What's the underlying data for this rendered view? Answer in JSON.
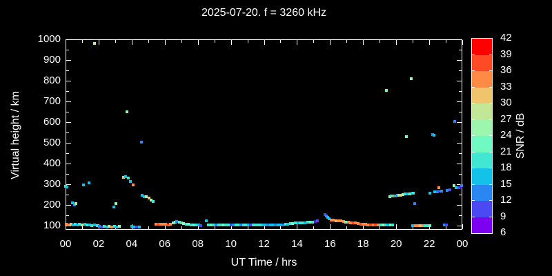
{
  "title": "2025-07-20. f = 3260 kHz",
  "chart_data": {
    "type": "scatter",
    "title": "2025-07-20. f = 3260 kHz",
    "xlabel": "UT Time / hrs",
    "ylabel": "Virtual height / km",
    "xlim": [
      0,
      24
    ],
    "ylim": [
      80,
      1000
    ],
    "grid": false,
    "x_tick_labels": [
      "00",
      "02",
      "04",
      "06",
      "08",
      "10",
      "12",
      "14",
      "16",
      "18",
      "20",
      "22",
      "00"
    ],
    "x_tick_hours": [
      0,
      2,
      4,
      6,
      8,
      10,
      12,
      14,
      16,
      18,
      20,
      22,
      24
    ],
    "y_tick_labels": [
      100,
      200,
      300,
      400,
      500,
      600,
      700,
      800,
      900,
      1000
    ],
    "colorbar": {
      "label": "SNR / dB",
      "min": 6,
      "max": 42,
      "step": 3,
      "tick_labels": [
        6,
        9,
        12,
        15,
        18,
        21,
        24,
        27,
        30,
        33,
        36,
        39,
        42
      ],
      "colors": [
        "#7d00f0",
        "#4b4af2",
        "#2a86f0",
        "#13c2e9",
        "#41e7d3",
        "#70f9c3",
        "#9cf6ae",
        "#c2e796",
        "#f0c46c",
        "#fe8b45",
        "#ff4a26",
        "#fe0000"
      ]
    },
    "series_note": "points are [UT_hour, virtual_height_km, snr_bucket_index] where bucket 0 = 6-9 dB ... 11 = 39-42 dB",
    "points": [
      [
        0.02,
        290,
        4
      ],
      [
        0.1,
        288,
        3
      ],
      [
        0.42,
        210,
        3
      ],
      [
        0.55,
        200,
        2
      ],
      [
        0.62,
        207,
        6
      ],
      [
        1.08,
        297,
        3
      ],
      [
        1.42,
        307,
        3
      ],
      [
        1.77,
        980,
        7
      ],
      [
        2.92,
        190,
        3
      ],
      [
        3.05,
        207,
        6
      ],
      [
        3.5,
        333,
        8
      ],
      [
        3.62,
        337,
        3
      ],
      [
        3.8,
        330,
        4
      ],
      [
        3.92,
        313,
        3
      ],
      [
        4.07,
        297,
        9
      ],
      [
        3.7,
        650,
        6
      ],
      [
        4.6,
        502,
        2
      ],
      [
        4.62,
        247,
        3
      ],
      [
        4.75,
        240,
        3
      ],
      [
        4.9,
        240,
        6
      ],
      [
        5.05,
        233,
        8
      ],
      [
        5.17,
        223,
        6
      ],
      [
        5.3,
        217,
        4
      ],
      [
        0.05,
        107,
        9
      ],
      [
        0.18,
        105,
        9
      ],
      [
        0.32,
        107,
        8
      ],
      [
        0.45,
        105,
        3
      ],
      [
        0.58,
        107,
        4
      ],
      [
        0.72,
        105,
        3
      ],
      [
        0.85,
        107,
        4
      ],
      [
        1.0,
        105,
        7
      ],
      [
        1.15,
        107,
        3
      ],
      [
        1.3,
        103,
        4
      ],
      [
        1.45,
        105,
        3
      ],
      [
        1.6,
        101,
        4
      ],
      [
        1.75,
        103,
        3
      ],
      [
        1.9,
        100,
        4
      ],
      [
        2.05,
        98,
        2
      ],
      [
        2.2,
        95,
        1
      ],
      [
        2.35,
        97,
        4
      ],
      [
        2.5,
        95,
        3
      ],
      [
        2.65,
        97,
        6
      ],
      [
        2.8,
        95,
        9
      ],
      [
        2.95,
        97,
        4
      ],
      [
        3.1,
        95,
        3
      ],
      [
        3.25,
        97,
        6
      ],
      [
        4.0,
        97,
        3
      ],
      [
        4.15,
        95,
        3
      ],
      [
        4.3,
        93,
        1
      ],
      [
        4.45,
        95,
        3
      ],
      [
        5.45,
        107,
        9
      ],
      [
        5.6,
        108,
        10
      ],
      [
        5.75,
        107,
        9
      ],
      [
        5.9,
        106,
        9
      ],
      [
        6.05,
        107,
        9
      ],
      [
        6.2,
        105,
        10
      ],
      [
        6.35,
        107,
        9
      ],
      [
        6.5,
        113,
        5
      ],
      [
        6.62,
        118,
        6
      ],
      [
        6.74,
        121,
        2
      ],
      [
        6.87,
        117,
        5
      ],
      [
        7.0,
        113,
        4
      ],
      [
        7.15,
        110,
        6
      ],
      [
        7.3,
        108,
        4
      ],
      [
        7.45,
        107,
        5
      ],
      [
        7.6,
        105,
        4
      ],
      [
        7.75,
        103,
        5
      ],
      [
        7.9,
        103,
        4
      ],
      [
        8.05,
        102,
        3
      ],
      [
        8.2,
        100,
        1
      ],
      [
        8.5,
        125,
        3
      ],
      [
        8.65,
        103,
        4
      ],
      [
        8.8,
        102,
        5
      ],
      [
        8.95,
        103,
        4
      ],
      [
        9.1,
        102,
        2
      ],
      [
        9.25,
        103,
        4
      ],
      [
        9.4,
        102,
        4
      ],
      [
        9.55,
        103,
        5
      ],
      [
        9.7,
        102,
        4
      ],
      [
        9.85,
        103,
        4
      ],
      [
        10.0,
        102,
        1
      ],
      [
        10.15,
        103,
        2
      ],
      [
        10.3,
        102,
        4
      ],
      [
        10.45,
        103,
        4
      ],
      [
        10.6,
        102,
        2
      ],
      [
        10.75,
        103,
        4
      ],
      [
        10.9,
        102,
        4
      ],
      [
        11.05,
        103,
        3
      ],
      [
        11.2,
        102,
        1
      ],
      [
        11.35,
        103,
        4
      ],
      [
        11.5,
        102,
        4
      ],
      [
        11.65,
        103,
        4
      ],
      [
        11.8,
        102,
        4
      ],
      [
        11.95,
        103,
        3
      ],
      [
        12.1,
        102,
        3
      ],
      [
        12.25,
        103,
        2
      ],
      [
        12.4,
        102,
        3
      ],
      [
        12.55,
        103,
        3
      ],
      [
        12.7,
        102,
        2
      ],
      [
        12.85,
        103,
        3
      ],
      [
        13.0,
        102,
        3
      ],
      [
        13.15,
        103,
        2
      ],
      [
        13.3,
        107,
        4
      ],
      [
        13.45,
        108,
        3
      ],
      [
        13.6,
        110,
        4
      ],
      [
        13.75,
        110,
        5
      ],
      [
        13.9,
        112,
        4
      ],
      [
        14.05,
        113,
        3
      ],
      [
        14.2,
        113,
        4
      ],
      [
        14.35,
        115,
        4
      ],
      [
        14.5,
        115,
        3
      ],
      [
        14.65,
        117,
        4
      ],
      [
        14.8,
        117,
        5
      ],
      [
        14.95,
        118,
        4
      ],
      [
        15.1,
        120,
        0
      ],
      [
        15.22,
        122,
        1
      ],
      [
        15.7,
        155,
        1
      ],
      [
        15.78,
        147,
        2
      ],
      [
        15.87,
        140,
        3
      ],
      [
        15.95,
        133,
        3
      ],
      [
        16.05,
        128,
        9
      ],
      [
        16.2,
        127,
        9
      ],
      [
        16.35,
        125,
        8
      ],
      [
        16.5,
        123,
        9
      ],
      [
        16.65,
        122,
        9
      ],
      [
        16.8,
        120,
        9
      ],
      [
        16.95,
        118,
        5
      ],
      [
        17.1,
        117,
        9
      ],
      [
        17.25,
        115,
        9
      ],
      [
        17.4,
        113,
        10
      ],
      [
        17.55,
        112,
        9
      ],
      [
        17.7,
        110,
        9
      ],
      [
        17.85,
        108,
        10
      ],
      [
        18.0,
        107,
        9
      ],
      [
        18.15,
        107,
        9
      ],
      [
        18.3,
        105,
        9
      ],
      [
        18.45,
        104,
        10
      ],
      [
        18.6,
        103,
        9
      ],
      [
        18.75,
        103,
        10
      ],
      [
        18.9,
        102,
        9
      ],
      [
        19.05,
        102,
        4
      ],
      [
        19.2,
        102,
        6
      ],
      [
        19.35,
        102,
        4
      ],
      [
        19.5,
        102,
        3
      ],
      [
        19.65,
        102,
        5
      ],
      [
        19.8,
        102,
        4
      ],
      [
        21.0,
        100,
        3
      ],
      [
        21.15,
        99,
        9
      ],
      [
        21.3,
        99,
        9
      ],
      [
        21.45,
        99,
        8
      ],
      [
        21.6,
        99,
        9
      ],
      [
        21.75,
        100,
        4
      ],
      [
        21.9,
        100,
        4
      ],
      [
        22.05,
        100,
        5
      ],
      [
        22.9,
        102,
        2
      ],
      [
        23.05,
        102,
        1
      ],
      [
        19.6,
        240,
        6
      ],
      [
        19.72,
        242,
        4
      ],
      [
        19.85,
        244,
        9
      ],
      [
        19.95,
        245,
        3
      ],
      [
        20.07,
        246,
        2
      ],
      [
        20.18,
        248,
        6
      ],
      [
        20.3,
        248,
        8
      ],
      [
        20.42,
        250,
        6
      ],
      [
        20.55,
        252,
        4
      ],
      [
        20.68,
        253,
        3
      ],
      [
        20.82,
        255,
        5
      ],
      [
        20.95,
        257,
        3
      ],
      [
        21.05,
        258,
        4
      ],
      [
        21.1,
        207,
        2
      ],
      [
        22.05,
        257,
        3
      ],
      [
        22.35,
        262,
        3
      ],
      [
        22.5,
        264,
        2
      ],
      [
        22.6,
        283,
        9
      ],
      [
        22.62,
        266,
        1
      ],
      [
        22.75,
        268,
        2
      ],
      [
        23.1,
        270,
        2
      ],
      [
        23.25,
        272,
        1
      ],
      [
        23.5,
        292,
        6
      ],
      [
        23.62,
        283,
        3
      ],
      [
        23.8,
        285,
        1
      ],
      [
        23.9,
        288,
        0
      ],
      [
        23.97,
        295,
        2
      ],
      [
        19.4,
        753,
        5
      ],
      [
        20.9,
        810,
        6
      ],
      [
        20.6,
        530,
        5
      ],
      [
        22.2,
        540,
        2
      ],
      [
        22.3,
        537,
        3
      ],
      [
        23.55,
        603,
        2
      ]
    ]
  }
}
